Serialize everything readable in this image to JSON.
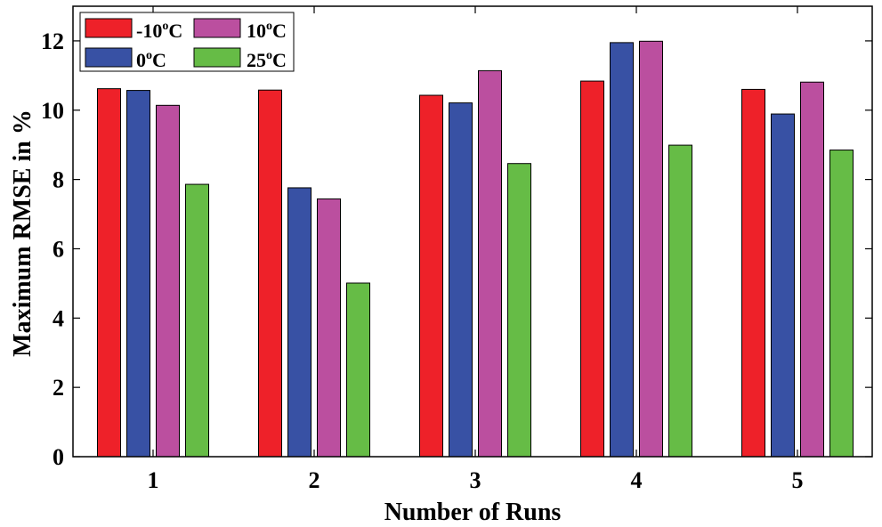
{
  "chart_data": {
    "type": "bar",
    "title": "",
    "xlabel": "Number of Runs",
    "ylabel": "Maximum RMSE in %",
    "categories": [
      "1",
      "2",
      "3",
      "4",
      "5"
    ],
    "ylim": [
      0,
      13
    ],
    "yticks": [
      0,
      2,
      4,
      6,
      8,
      10,
      12
    ],
    "grid": false,
    "legend_position": "top-left",
    "series": [
      {
        "name": "-10oC",
        "label_main": "-10",
        "label_sup": "o",
        "label_unit": "C",
        "color": "#ee2129",
        "values": [
          10.62,
          10.58,
          10.43,
          10.84,
          10.6
        ]
      },
      {
        "name": "0oC",
        "label_main": "0",
        "label_sup": "o",
        "label_unit": "C",
        "color": "#3851a4",
        "values": [
          10.57,
          7.76,
          10.21,
          11.95,
          9.89
        ]
      },
      {
        "name": "10oC",
        "label_main": "10",
        "label_sup": "o",
        "label_unit": "C",
        "color": "#bb4f9f",
        "values": [
          10.14,
          7.44,
          11.14,
          11.99,
          10.81
        ]
      },
      {
        "name": "25oC",
        "label_main": "25",
        "label_sup": "o",
        "label_unit": "C",
        "color": "#66bc46",
        "values": [
          7.86,
          5.01,
          8.46,
          8.99,
          8.85
        ]
      }
    ]
  }
}
